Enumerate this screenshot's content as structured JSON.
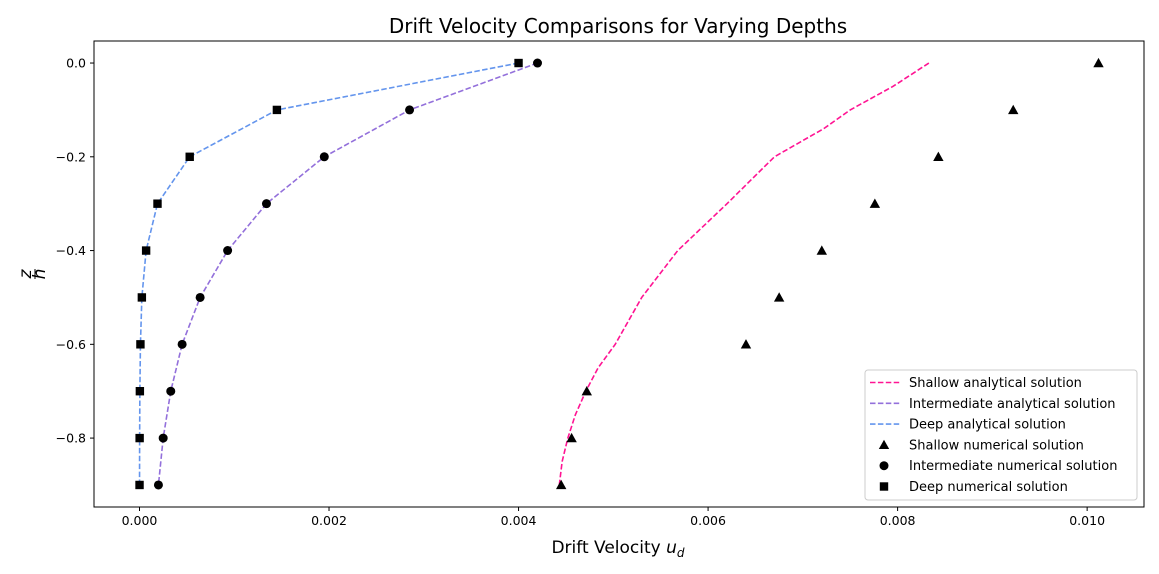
{
  "chart_data": {
    "type": "line",
    "title": "Drift Velocity Comparisons for Varying Depths",
    "xlabel": "Drift Velocity u_d",
    "ylabel": "z/h",
    "xlim": [
      -0.00048,
      0.0106
    ],
    "ylim": [
      -0.947,
      0.047
    ],
    "xticks": [
      0.0,
      0.002,
      0.004,
      0.006,
      0.008,
      0.01
    ],
    "xtick_labels": [
      "0.000",
      "0.002",
      "0.004",
      "0.006",
      "0.008",
      "0.010"
    ],
    "yticks": [
      0.0,
      -0.2,
      -0.4,
      -0.6,
      -0.8
    ],
    "ytick_labels": [
      "0.0",
      "−0.2",
      "−0.4",
      "−0.6",
      "−0.8"
    ],
    "legend_position": "lower-right",
    "series": [
      {
        "name": "Shallow analytical solution",
        "kind": "line",
        "style": "dashed",
        "color": "#ff1493",
        "x": [
          0.00833,
          0.00795,
          0.0075,
          0.00722,
          0.0067,
          0.0062,
          0.00568,
          0.0053,
          0.00502,
          0.00484,
          0.00471,
          0.0046,
          0.00452,
          0.00446,
          0.00443
        ],
        "y": [
          0.0,
          -0.05,
          -0.1,
          -0.14,
          -0.2,
          -0.3,
          -0.4,
          -0.5,
          -0.6,
          -0.65,
          -0.7,
          -0.75,
          -0.8,
          -0.85,
          -0.9
        ]
      },
      {
        "name": "Intermediate analytical solution",
        "kind": "line",
        "style": "dashed",
        "color": "#9370db",
        "x": [
          0.0042,
          0.00285,
          0.00195,
          0.00134,
          0.00093,
          0.00064,
          0.00045,
          0.00033,
          0.00025,
          0.0002
        ],
        "y": [
          0.0,
          -0.1,
          -0.2,
          -0.3,
          -0.4,
          -0.5,
          -0.6,
          -0.7,
          -0.8,
          -0.9
        ]
      },
      {
        "name": "Deep analytical solution",
        "kind": "line",
        "style": "dashed",
        "color": "#6495ed",
        "x": [
          0.004,
          0.00145,
          0.00053,
          0.00019,
          7e-05,
          2.5e-05,
          1e-05,
          4e-06,
          1.5e-06,
          5e-07
        ],
        "y": [
          0.0,
          -0.1,
          -0.2,
          -0.3,
          -0.4,
          -0.5,
          -0.6,
          -0.7,
          -0.8,
          -0.9
        ]
      },
      {
        "name": "Shallow numerical solution",
        "kind": "scatter",
        "marker": "triangle",
        "color": "#000000",
        "x": [
          0.01012,
          0.00922,
          0.00843,
          0.00776,
          0.0072,
          0.00675,
          0.0064,
          0.00472,
          0.00456,
          0.00445
        ],
        "y": [
          0.0,
          -0.1,
          -0.2,
          -0.3,
          -0.4,
          -0.5,
          -0.6,
          -0.7,
          -0.8,
          -0.9
        ]
      },
      {
        "name": "Intermediate numerical solution",
        "kind": "scatter",
        "marker": "circle",
        "color": "#000000",
        "x": [
          0.0042,
          0.00285,
          0.00195,
          0.00134,
          0.00093,
          0.00064,
          0.00045,
          0.00033,
          0.00025,
          0.0002
        ],
        "y": [
          0.0,
          -0.1,
          -0.2,
          -0.3,
          -0.4,
          -0.5,
          -0.6,
          -0.7,
          -0.8,
          -0.9
        ]
      },
      {
        "name": "Deep numerical solution",
        "kind": "scatter",
        "marker": "square",
        "color": "#000000",
        "x": [
          0.004,
          0.00145,
          0.00053,
          0.00019,
          7e-05,
          2.5e-05,
          1e-05,
          4e-06,
          1.5e-06,
          5e-07
        ],
        "y": [
          0.0,
          -0.1,
          -0.2,
          -0.3,
          -0.4,
          -0.5,
          -0.6,
          -0.7,
          -0.8,
          -0.9
        ]
      }
    ]
  }
}
